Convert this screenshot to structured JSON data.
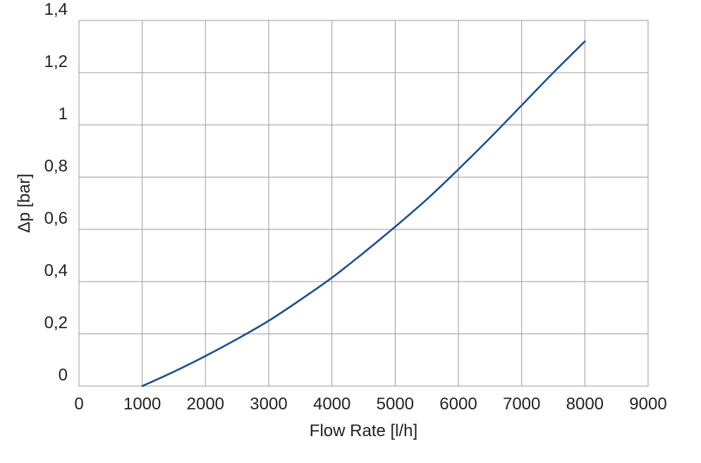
{
  "chart_data": {
    "type": "line",
    "title": "",
    "xlabel": "Flow Rate [l/h]",
    "ylabel": "Δp [bar]",
    "xlim": [
      0,
      9000
    ],
    "ylim": [
      0,
      1.4
    ],
    "x_ticks": [
      {
        "value": 0,
        "label": "0"
      },
      {
        "value": 1000,
        "label": "1000"
      },
      {
        "value": 2000,
        "label": "2000"
      },
      {
        "value": 3000,
        "label": "3000"
      },
      {
        "value": 4000,
        "label": "4000"
      },
      {
        "value": 5000,
        "label": "5000"
      },
      {
        "value": 6000,
        "label": "6000"
      },
      {
        "value": 7000,
        "label": "7000"
      },
      {
        "value": 8000,
        "label": "8000"
      },
      {
        "value": 9000,
        "label": "9000"
      }
    ],
    "y_ticks": [
      {
        "value": 0,
        "label": "0"
      },
      {
        "value": 0.2,
        "label": "0,2"
      },
      {
        "value": 0.4,
        "label": "0,4"
      },
      {
        "value": 0.6,
        "label": "0,6"
      },
      {
        "value": 0.8,
        "label": "0,8"
      },
      {
        "value": 1.0,
        "label": "1"
      },
      {
        "value": 1.2,
        "label": "1,2"
      },
      {
        "value": 1.4,
        "label": "1,4"
      }
    ],
    "grid": true,
    "legend": "none",
    "series": [
      {
        "color": "#1f4e8c",
        "x": [
          1000,
          1500,
          2000,
          2500,
          3000,
          3500,
          4000,
          4500,
          5000,
          5500,
          6000,
          6500,
          7000,
          7500,
          8000
        ],
        "y": [
          0.0,
          0.055,
          0.115,
          0.18,
          0.25,
          0.33,
          0.415,
          0.51,
          0.61,
          0.715,
          0.83,
          0.95,
          1.075,
          1.2,
          1.32
        ]
      }
    ]
  }
}
